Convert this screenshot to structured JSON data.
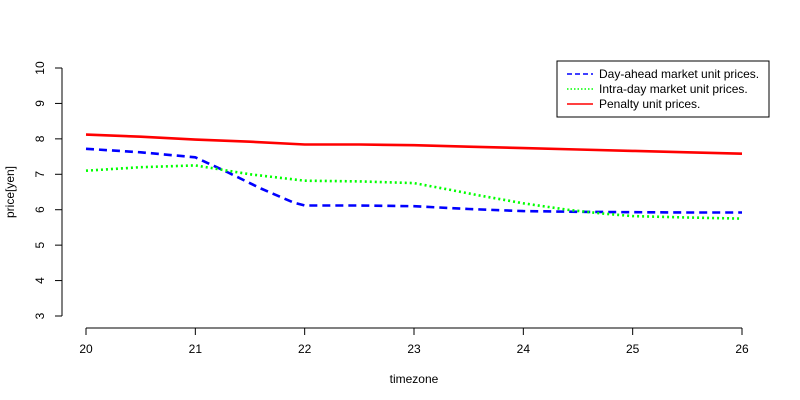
{
  "chart_data": {
    "type": "line",
    "title": "",
    "xlabel": "timezone",
    "ylabel": "price[yen]",
    "xlim": [
      20,
      26
    ],
    "ylim": [
      3,
      10
    ],
    "x_ticks": [
      20,
      21,
      22,
      23,
      24,
      25,
      26
    ],
    "y_ticks": [
      3,
      4,
      5,
      6,
      7,
      8,
      9,
      10
    ],
    "grid": false,
    "legend_position": "top-right",
    "series": [
      {
        "name": "Day-ahead market unit prices.",
        "color": "#0000FF",
        "style": "dashed",
        "x": [
          20,
          20.5,
          21,
          21.3,
          21.6,
          21.9,
          22,
          22.5,
          23,
          23.5,
          24,
          24.5,
          25,
          25.5,
          26
        ],
        "values": [
          7.72,
          7.62,
          7.48,
          7.05,
          6.6,
          6.2,
          6.12,
          6.12,
          6.1,
          6.02,
          5.96,
          5.94,
          5.93,
          5.92,
          5.92
        ]
      },
      {
        "name": "Intra-day market unit prices.",
        "color": "#00FF00",
        "style": "dotted",
        "x": [
          20,
          20.5,
          21,
          21.5,
          22,
          22.5,
          23,
          23.3,
          23.6,
          24,
          24.4,
          24.7,
          25,
          25.5,
          26
        ],
        "values": [
          7.1,
          7.2,
          7.25,
          7.0,
          6.82,
          6.8,
          6.75,
          6.58,
          6.4,
          6.18,
          6.0,
          5.9,
          5.82,
          5.78,
          5.75
        ]
      },
      {
        "name": "Penalty unit prices.",
        "color": "#FF0000",
        "style": "solid",
        "x": [
          20,
          20.5,
          21,
          21.5,
          22,
          22.5,
          23,
          23.5,
          24,
          24.5,
          25,
          25.5,
          26
        ],
        "values": [
          8.12,
          8.06,
          7.98,
          7.92,
          7.84,
          7.84,
          7.82,
          7.78,
          7.74,
          7.7,
          7.66,
          7.62,
          7.58
        ]
      }
    ]
  }
}
